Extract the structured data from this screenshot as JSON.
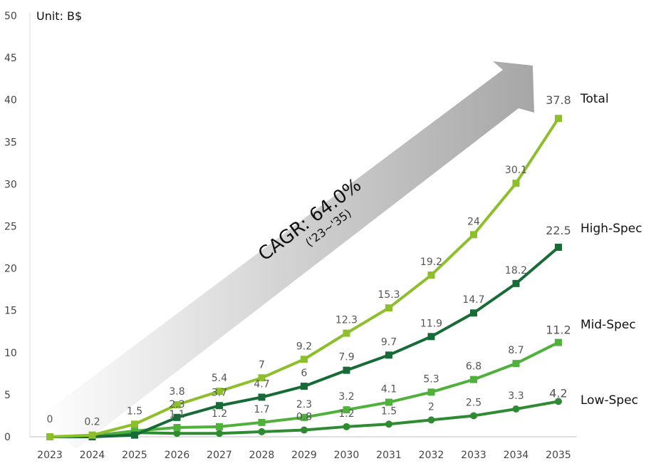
{
  "chart_data": {
    "type": "line",
    "unit_label": "Unit: B$",
    "x": [
      "2023",
      "2024",
      "2025",
      "2026",
      "2027",
      "2028",
      "2029",
      "2030",
      "2031",
      "2032",
      "2033",
      "2034",
      "2035"
    ],
    "ylim": [
      0,
      50
    ],
    "yticks": [
      "0",
      "5",
      "10",
      "15",
      "20",
      "25",
      "30",
      "35",
      "40",
      "45",
      "50"
    ],
    "grid": false,
    "series": [
      {
        "name": "Total",
        "color": "#8dbf2c",
        "marker": "square",
        "values": [
          0,
          0.2,
          1.5,
          3.8,
          5.4,
          7,
          9.2,
          12.3,
          15.3,
          19.2,
          24,
          30.1,
          37.8
        ],
        "labels": [
          "0",
          "0.2",
          "1.5",
          "3.8",
          "5.4",
          "7",
          "9.2",
          "12.3",
          "15.3",
          "19.2",
          "24",
          "30.1",
          "37.8"
        ]
      },
      {
        "name": "High-Spec",
        "color": "#176b36",
        "marker": "square",
        "values": [
          0,
          0,
          0.2,
          2.3,
          3.7,
          4.7,
          6,
          7.9,
          9.7,
          11.9,
          14.7,
          18.2,
          22.5
        ],
        "labels": [
          "",
          "",
          "",
          "2.3",
          "3.7",
          "4.7",
          "6",
          "7.9",
          "9.7",
          "11.9",
          "14.7",
          "18.2",
          "22.5"
        ]
      },
      {
        "name": "Mid-Spec",
        "color": "#4fb03c",
        "marker": "square",
        "values": [
          0,
          0.1,
          0.7,
          1.1,
          1.2,
          1.7,
          2.3,
          3.2,
          4.1,
          5.3,
          6.8,
          8.7,
          11.2
        ],
        "labels": [
          "",
          "",
          "",
          "1.1",
          "1.2",
          "1.7",
          "2.3",
          "3.2",
          "4.1",
          "5.3",
          "6.8",
          "8.7",
          "11.2"
        ]
      },
      {
        "name": "Low-Spec",
        "color": "#2e8b32",
        "marker": "circle",
        "values": [
          0,
          0.1,
          0.5,
          0.4,
          0.4,
          0.6,
          0.8,
          1.2,
          1.5,
          2,
          2.5,
          3.3,
          4.2
        ],
        "labels": [
          "",
          "",
          "",
          "",
          "",
          "",
          "0.8",
          "1.2",
          "1.5",
          "2",
          "2.5",
          "3.3",
          "4.2"
        ]
      }
    ],
    "annotation": {
      "text": "CAGR: 64.0%",
      "subtext": "('23~'35)"
    }
  }
}
